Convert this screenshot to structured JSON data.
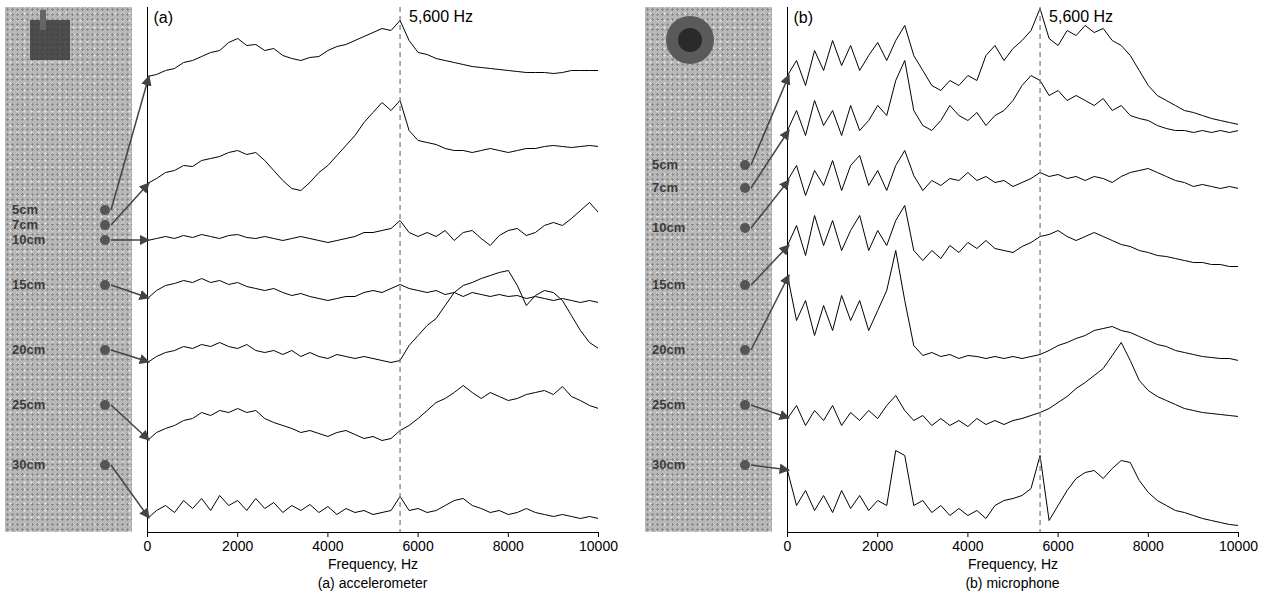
{
  "chart_data": [
    {
      "type": "line",
      "title": "(a)",
      "caption": "(a) accelerometer",
      "xlabel": "Frequency, Hz",
      "x": [
        0,
        200,
        400,
        600,
        800,
        1000,
        1200,
        1400,
        1600,
        1800,
        2000,
        2200,
        2400,
        2600,
        2800,
        3000,
        3200,
        3400,
        3600,
        3800,
        4000,
        4200,
        4400,
        4600,
        4800,
        5000,
        5200,
        5400,
        5600,
        5800,
        6000,
        6200,
        6400,
        6600,
        6800,
        7000,
        7200,
        7400,
        7600,
        7800,
        8000,
        8200,
        8400,
        8600,
        8800,
        9000,
        9200,
        9400,
        9600,
        9800,
        10000
      ],
      "xlim": [
        0,
        10000
      ],
      "xticks": [
        0,
        2000,
        4000,
        6000,
        8000,
        10000
      ],
      "ylim": [
        0,
        525
      ],
      "tick_labels": "x",
      "grid": false,
      "annotations": [
        {
          "text": "5,600 Hz",
          "x": 5600,
          "line_style": "dashed"
        }
      ],
      "series": [
        {
          "name": "5cm",
          "color": "#000000",
          "values": [
            456,
            458,
            462,
            464,
            470,
            472,
            476,
            480,
            482,
            490,
            494,
            487,
            488,
            482,
            484,
            477,
            474,
            472,
            475,
            476,
            482,
            486,
            488,
            492,
            496,
            500,
            504,
            502,
            512,
            492,
            480,
            478,
            474,
            472,
            470,
            468,
            466,
            465,
            464,
            463,
            462,
            461,
            460,
            460,
            460,
            459,
            460,
            462,
            462,
            462,
            462
          ]
        },
        {
          "name": "7cm",
          "color": "#000000",
          "values": [
            349,
            354,
            360,
            362,
            367,
            366,
            372,
            374,
            376,
            380,
            382,
            378,
            380,
            372,
            362,
            352,
            344,
            342,
            350,
            360,
            367,
            377,
            387,
            397,
            410,
            420,
            430,
            422,
            432,
            402,
            392,
            390,
            388,
            384,
            382,
            382,
            380,
            382,
            384,
            382,
            380,
            382,
            384,
            384,
            386,
            387,
            386,
            385,
            386,
            387,
            386
          ]
        },
        {
          "name": "10cm",
          "color": "#000000",
          "values": [
            292,
            294,
            296,
            294,
            297,
            295,
            298,
            296,
            294,
            297,
            298,
            295,
            294,
            296,
            294,
            292,
            294,
            296,
            294,
            292,
            290,
            292,
            294,
            296,
            300,
            300,
            302,
            304,
            312,
            300,
            296,
            300,
            296,
            302,
            292,
            300,
            302,
            294,
            287,
            297,
            302,
            304,
            297,
            300,
            307,
            310,
            307,
            314,
            322,
            330,
            320
          ]
        },
        {
          "name": "15cm",
          "color": "#000000",
          "values": [
            234,
            242,
            247,
            249,
            252,
            250,
            254,
            250,
            252,
            248,
            250,
            246,
            244,
            242,
            244,
            240,
            237,
            239,
            236,
            234,
            232,
            234,
            236,
            236,
            240,
            242,
            240,
            244,
            248,
            244,
            242,
            240,
            242,
            238,
            240,
            236,
            240,
            238,
            236,
            238,
            236,
            237,
            234,
            236,
            234,
            232,
            234,
            232,
            230,
            232,
            230
          ]
        },
        {
          "name": "20cm",
          "color": "#000000",
          "values": [
            170,
            176,
            180,
            182,
            186,
            184,
            188,
            186,
            190,
            186,
            184,
            188,
            182,
            180,
            182,
            178,
            182,
            176,
            180,
            176,
            174,
            178,
            176,
            174,
            176,
            174,
            172,
            170,
            172,
            187,
            197,
            207,
            214,
            227,
            240,
            247,
            250,
            254,
            257,
            260,
            262,
            247,
            227,
            237,
            242,
            240,
            232,
            217,
            202,
            190,
            184
          ]
        },
        {
          "name": "25cm",
          "color": "#000000",
          "values": [
            92,
            100,
            104,
            107,
            112,
            114,
            120,
            117,
            122,
            120,
            124,
            120,
            122,
            114,
            110,
            107,
            104,
            100,
            102,
            99,
            96,
            100,
            102,
            98,
            94,
            96,
            92,
            94,
            102,
            107,
            114,
            122,
            130,
            134,
            140,
            147,
            140,
            134,
            140,
            136,
            132,
            134,
            138,
            140,
            142,
            138,
            146,
            136,
            132,
            127,
            124
          ]
        },
        {
          "name": "30cm",
          "color": "#000000",
          "values": [
            14,
            22,
            27,
            20,
            32,
            24,
            34,
            22,
            37,
            27,
            32,
            22,
            34,
            24,
            30,
            20,
            27,
            22,
            28,
            20,
            26,
            18,
            24,
            20,
            22,
            18,
            20,
            22,
            36,
            22,
            24,
            20,
            22,
            27,
            32,
            34,
            27,
            24,
            20,
            22,
            18,
            20,
            24,
            20,
            18,
            16,
            18,
            16,
            14,
            16,
            14
          ]
        }
      ]
    },
    {
      "type": "line",
      "title": "(b)",
      "caption": "(b) microphone",
      "xlabel": "Frequency, Hz",
      "x": [
        0,
        200,
        400,
        600,
        800,
        1000,
        1200,
        1400,
        1600,
        1800,
        2000,
        2200,
        2400,
        2600,
        2800,
        3000,
        3200,
        3400,
        3600,
        3800,
        4000,
        4200,
        4400,
        4600,
        4800,
        5000,
        5200,
        5400,
        5600,
        5800,
        6000,
        6200,
        6400,
        6600,
        6800,
        7000,
        7200,
        7400,
        7600,
        7800,
        8000,
        8200,
        8400,
        8600,
        8800,
        9000,
        9200,
        9400,
        9600,
        9800,
        10000
      ],
      "xlim": [
        0,
        10000
      ],
      "xticks": [
        0,
        2000,
        4000,
        6000,
        8000,
        10000
      ],
      "ylim": [
        0,
        525
      ],
      "tick_labels": "x",
      "grid": false,
      "annotations": [
        {
          "text": "5,600 Hz",
          "x": 5600,
          "line_style": "dashed"
        }
      ],
      "series": [
        {
          "name": "5cm",
          "color": "#000000",
          "values": [
            457,
            472,
            447,
            482,
            462,
            492,
            467,
            487,
            462,
            477,
            490,
            472,
            492,
            507,
            477,
            462,
            447,
            442,
            452,
            447,
            457,
            452,
            477,
            487,
            472,
            484,
            492,
            502,
            524,
            494,
            487,
            502,
            497,
            507,
            500,
            504,
            492,
            487,
            477,
            462,
            447,
            437,
            432,
            427,
            422,
            420,
            417,
            414,
            412,
            410,
            408
          ]
        },
        {
          "name": "7cm",
          "color": "#000000",
          "values": [
            402,
            422,
            397,
            432,
            407,
            422,
            397,
            427,
            402,
            412,
            427,
            417,
            452,
            472,
            422,
            407,
            402,
            412,
            427,
            417,
            412,
            420,
            407,
            417,
            422,
            432,
            447,
            457,
            452,
            437,
            442,
            432,
            437,
            432,
            427,
            434,
            422,
            427,
            417,
            414,
            412,
            407,
            404,
            402,
            402,
            400,
            402,
            400,
            402,
            400,
            402
          ]
        },
        {
          "name": "10cm",
          "color": "#000000",
          "values": [
            352,
            367,
            337,
            362,
            347,
            372,
            342,
            367,
            377,
            347,
            362,
            342,
            367,
            382,
            357,
            342,
            352,
            347,
            354,
            352,
            360,
            352,
            356,
            350,
            352,
            346,
            350,
            354,
            360,
            356,
            358,
            354,
            356,
            352,
            356,
            354,
            350,
            356,
            360,
            362,
            364,
            360,
            356,
            352,
            350,
            346,
            348,
            346,
            344,
            346,
            344
          ]
        },
        {
          "name": "15cm",
          "color": "#000000",
          "values": [
            287,
            307,
            277,
            317,
            287,
            312,
            282,
            302,
            317,
            282,
            302,
            287,
            312,
            327,
            282,
            272,
            282,
            274,
            287,
            280,
            290,
            284,
            292,
            284,
            282,
            280,
            286,
            290,
            296,
            298,
            302,
            296,
            292,
            296,
            300,
            296,
            292,
            288,
            286,
            282,
            280,
            277,
            276,
            274,
            272,
            270,
            270,
            268,
            268,
            266,
            266
          ]
        },
        {
          "name": "20cm",
          "color": "#000000",
          "values": [
            257,
            212,
            232,
            197,
            227,
            202,
            237,
            212,
            232,
            202,
            222,
            242,
            282,
            232,
            187,
            177,
            180,
            176,
            178,
            174,
            177,
            176,
            174,
            176,
            174,
            176,
            174,
            176,
            178,
            182,
            187,
            190,
            194,
            197,
            202,
            204,
            206,
            202,
            200,
            196,
            192,
            188,
            186,
            182,
            180,
            178,
            176,
            175,
            174,
            174,
            172
          ]
        },
        {
          "name": "25cm",
          "color": "#000000",
          "values": [
            114,
            127,
            107,
            122,
            112,
            127,
            107,
            120,
            112,
            122,
            114,
            127,
            137,
            122,
            112,
            117,
            107,
            114,
            107,
            112,
            106,
            114,
            108,
            112,
            108,
            112,
            114,
            117,
            120,
            124,
            130,
            136,
            144,
            150,
            157,
            164,
            177,
            190,
            172,
            152,
            142,
            136,
            132,
            128,
            124,
            122,
            120,
            119,
            118,
            117,
            116
          ]
        },
        {
          "name": "30cm",
          "color": "#000000",
          "values": [
            62,
            27,
            42,
            22,
            37,
            20,
            42,
            24,
            37,
            22,
            32,
            27,
            82,
            77,
            27,
            32,
            20,
            27,
            17,
            24,
            17,
            22,
            14,
            27,
            32,
            34,
            37,
            44,
            77,
            12,
            27,
            42,
            54,
            60,
            62,
            54,
            64,
            72,
            70,
            52,
            40,
            32,
            27,
            22,
            20,
            17,
            14,
            12,
            10,
            8,
            7
          ]
        }
      ]
    }
  ]
}
